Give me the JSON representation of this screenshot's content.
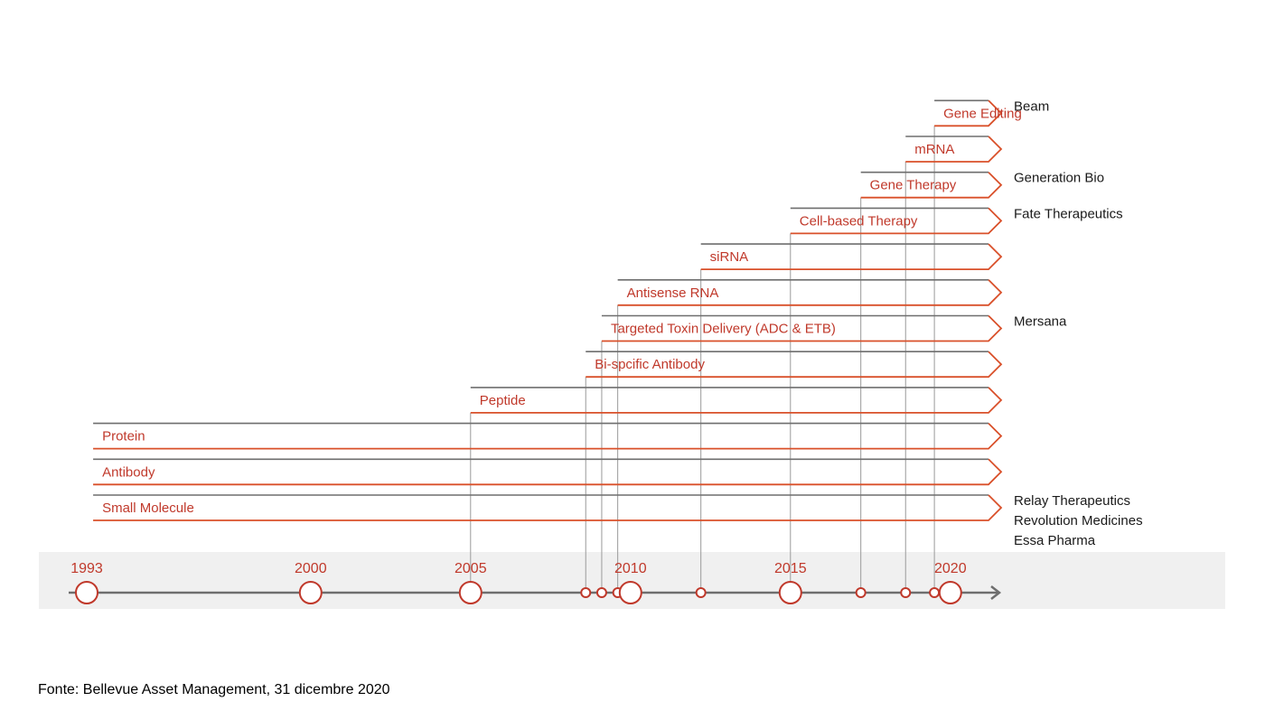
{
  "colors": {
    "accent": "#c0392b",
    "arrow_stroke": "#d9502a",
    "dark_line": "#6e6e6e",
    "grey_line": "#9a9a9a",
    "band": "#f0f0f0",
    "text": "#1a1a1a"
  },
  "timeline": {
    "years": [
      "1993",
      "2000",
      "2005",
      "2010",
      "2015",
      "2020"
    ],
    "milestones": [
      1993,
      2000,
      2005,
      2010,
      2015,
      2020
    ],
    "events": [
      2008.6,
      2009.1,
      2009.6,
      2012.2,
      2017.2,
      2018.6,
      2019.5
    ]
  },
  "technologies": [
    {
      "name": "Small Molecule",
      "start": 1993.2
    },
    {
      "name": "Antibody",
      "start": 1993.2
    },
    {
      "name": "Protein",
      "start": 1993.2
    },
    {
      "name": "Peptide",
      "start": 2005
    },
    {
      "name": "Bi-spcific Antibody",
      "start": 2008.6
    },
    {
      "name": "Targeted Toxin Delivery (ADC & ETB)",
      "start": 2009.1
    },
    {
      "name": "Antisense RNA",
      "start": 2009.6
    },
    {
      "name": "siRNA",
      "start": 2012.2
    },
    {
      "name": "Cell-based Therapy",
      "start": 2015
    },
    {
      "name": "Gene Therapy",
      "start": 2017.2
    },
    {
      "name": "mRNA",
      "start": 2018.6
    },
    {
      "name": "Gene Editing",
      "start": 2019.5
    }
  ],
  "companies": [
    {
      "row": 11,
      "names": [
        "Beam"
      ]
    },
    {
      "row": 9,
      "names": [
        "Generation Bio"
      ]
    },
    {
      "row": 8,
      "names": [
        "Fate Therapeutics"
      ]
    },
    {
      "row": 5,
      "names": [
        "Mersana"
      ]
    },
    {
      "row": 0,
      "names": [
        "Relay Therapeutics",
        "Revolution Medicines",
        "Essa Pharma"
      ]
    }
  ],
  "source": "Fonte: Bellevue Asset Management, 31 dicembre 2020"
}
